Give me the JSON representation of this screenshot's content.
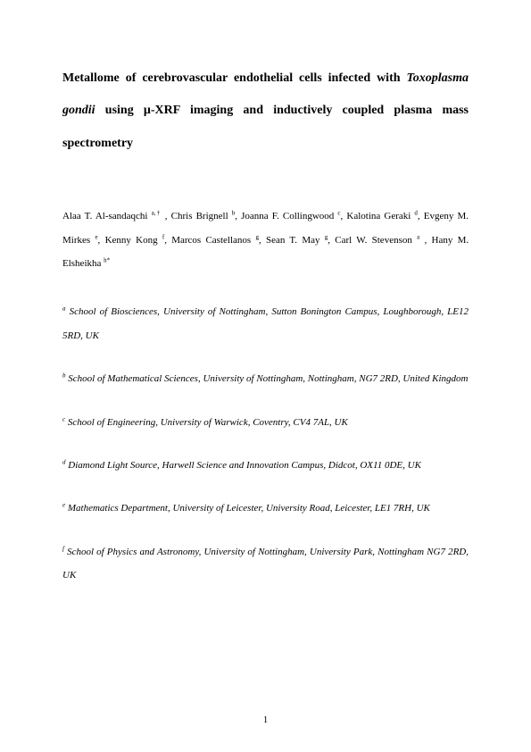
{
  "title": {
    "part1": "Metallome of cerebrovascular endothelial cells infected with ",
    "italic": "Toxoplasma gondii",
    "part2": " using μ-XRF imaging and inductively coupled plasma mass spectrometry"
  },
  "authors": [
    {
      "name": "Alaa T. Al-sandaqchi",
      "sup": "a,†"
    },
    {
      "name": "Chris Brignell",
      "sup": "b"
    },
    {
      "name": "Joanna F. Collingwood",
      "sup": "c"
    },
    {
      "name": "Kalotina Geraki",
      "sup": "d"
    },
    {
      "name": "Evgeny M. Mirkes",
      "sup": "e"
    },
    {
      "name": "Kenny Kong",
      "sup": "f"
    },
    {
      "name": "Marcos Castellanos",
      "sup": "g"
    },
    {
      "name": "Sean T. May",
      "sup": "g"
    },
    {
      "name": "Carl W. Stevenson",
      "sup": "a"
    },
    {
      "name": "Hany M. Elsheikha",
      "sup": "h*"
    }
  ],
  "affiliations": [
    {
      "sup": "a",
      "text": " School of Biosciences, University of Nottingham, Sutton Bonington Campus, Loughborough, LE12 5RD, UK"
    },
    {
      "sup": "b",
      "text": " School of Mathematical Sciences, University of Nottingham, Nottingham, NG7 2RD, United Kingdom"
    },
    {
      "sup": "c",
      "text": " School of Engineering, University of Warwick, Coventry, CV4 7AL, UK"
    },
    {
      "sup": "d",
      "text": " Diamond Light Source, Harwell Science and Innovation Campus, Didcot, OX11 0DE, UK"
    },
    {
      "sup": "e",
      "text": " Mathematics Department, University of Leicester, University Road, Leicester, LE1 7RH, UK"
    },
    {
      "sup": "f",
      "text": " School of Physics and Astronomy, University of Nottingham, University Park, Nottingham NG7 2RD, UK"
    }
  ],
  "pageNumber": "1"
}
